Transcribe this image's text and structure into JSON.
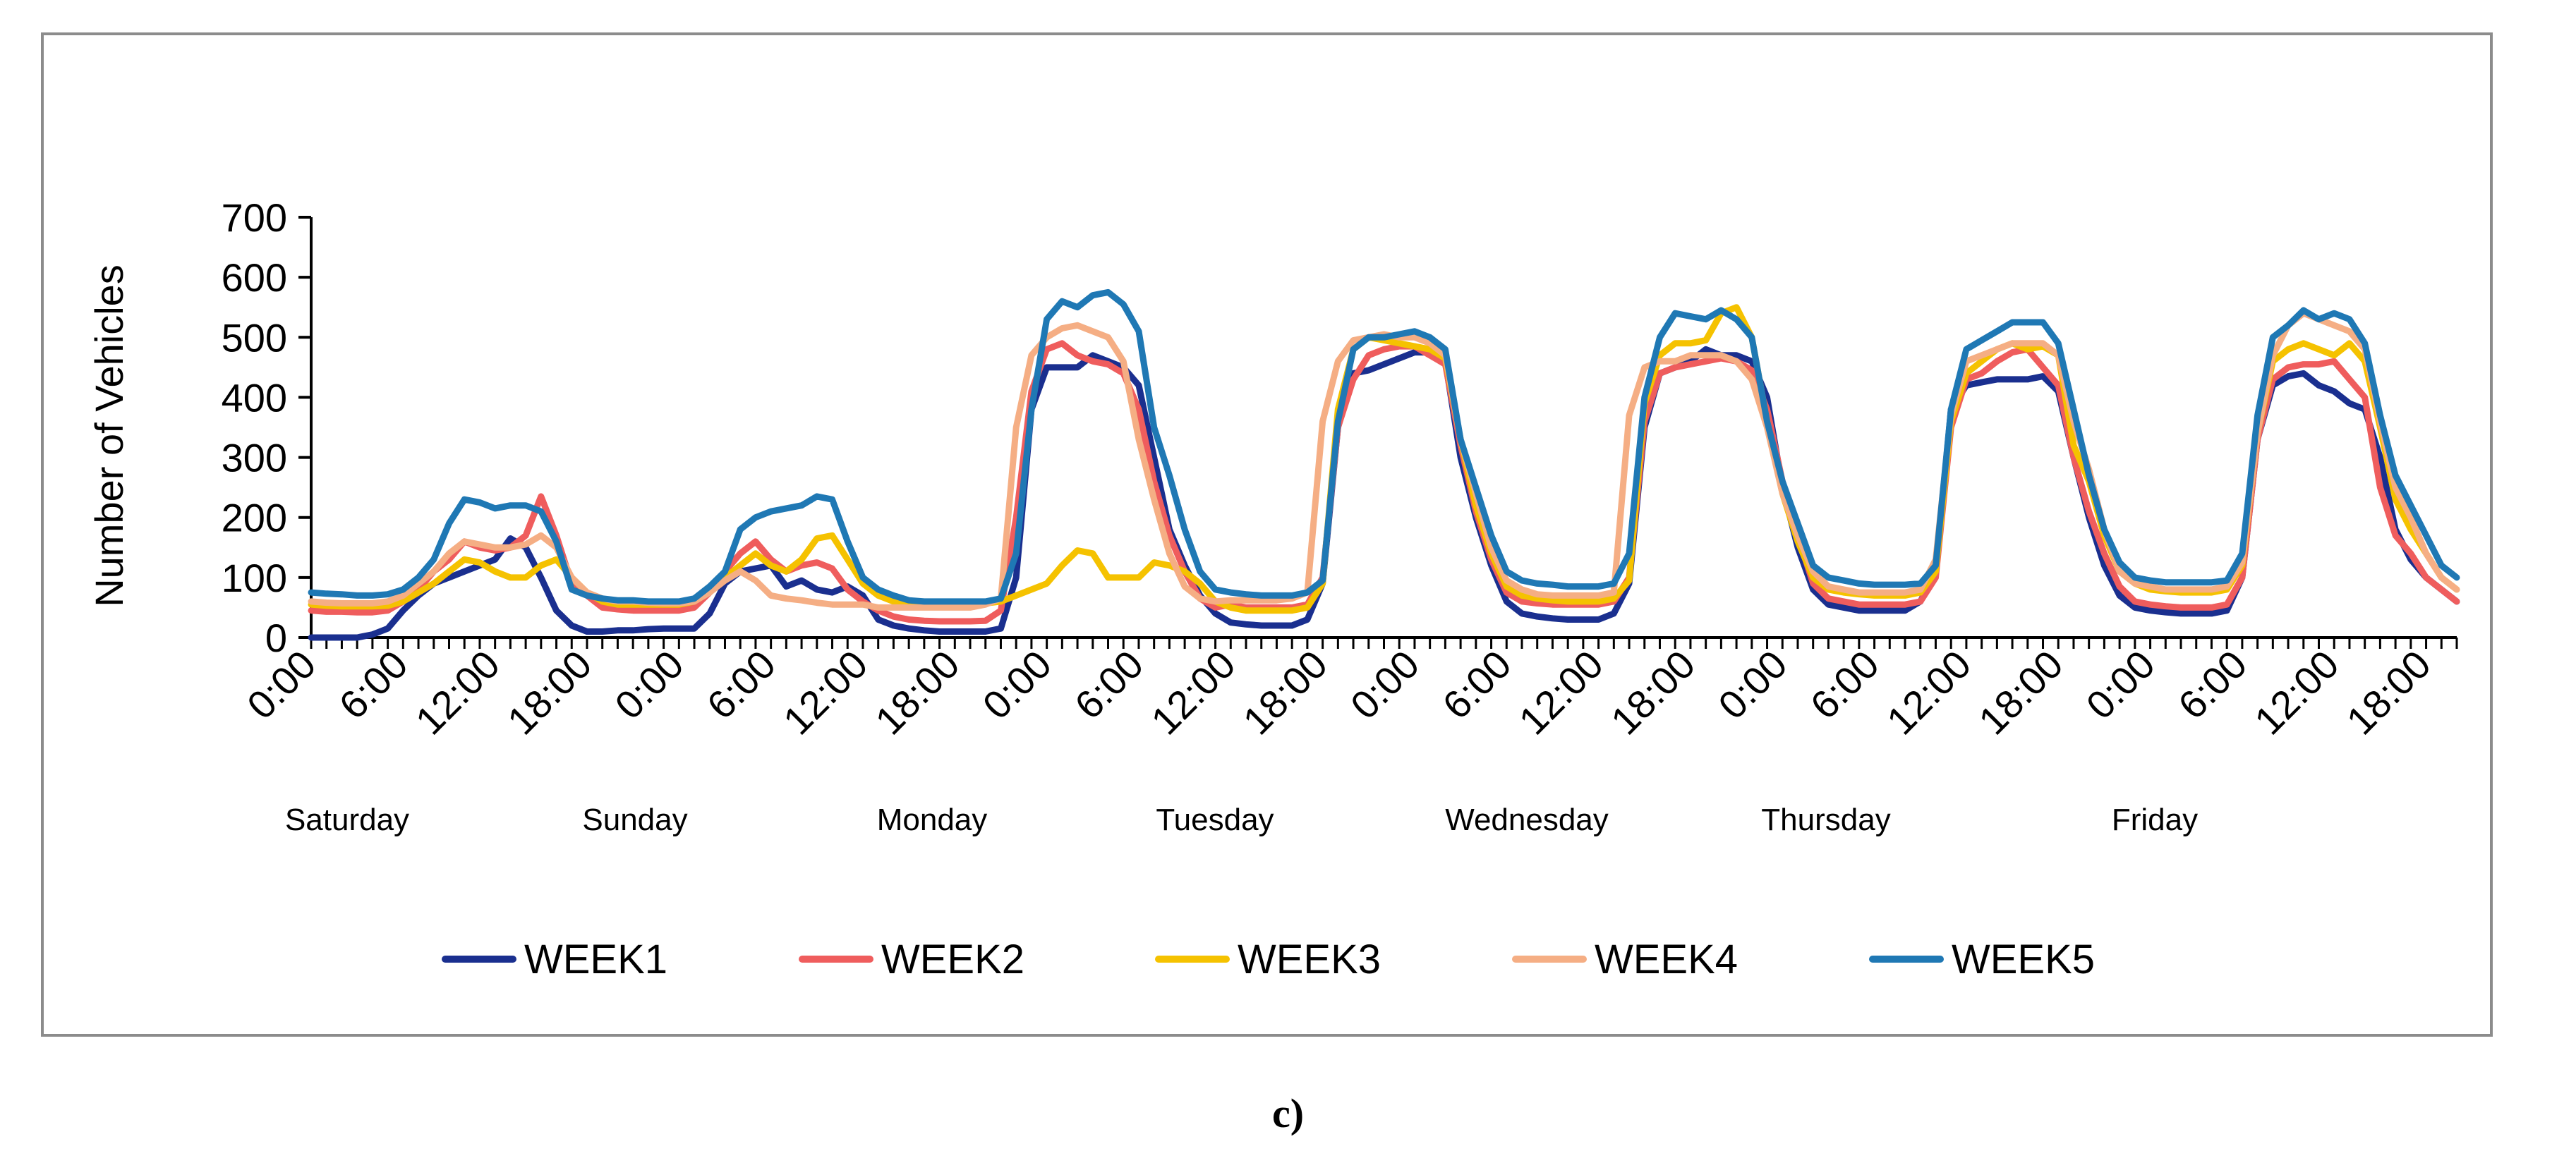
{
  "caption": "c)",
  "colors": {
    "WEEK1": "#1a2f8f",
    "WEEK2": "#ef5d5d",
    "WEEK3": "#f5c200",
    "WEEK4": "#f5ae84",
    "WEEK5": "#1f78b4"
  },
  "chart_data": {
    "type": "line",
    "title": "",
    "xlabel": "",
    "ylabel": "Number of Vehicles",
    "ylim": [
      0,
      700
    ],
    "yticks": [
      0,
      100,
      200,
      300,
      400,
      500,
      600,
      700
    ],
    "x_tick_labels": [
      "0:00",
      "6:00",
      "12:00",
      "18:00"
    ],
    "x_tick_step_hours": 6,
    "x_note_unused": "",
    "days": [
      "Saturday",
      "Sunday",
      "Monday",
      "Tuesday",
      "Wednesday",
      "Thursday",
      "Friday"
    ],
    "grid": false,
    "legend_position": "bottom",
    "series": [
      {
        "name": "WEEK1",
        "color": "#1a2f8f",
        "values": [
          0,
          0,
          0,
          0,
          5,
          15,
          45,
          70,
          90,
          100,
          110,
          120,
          130,
          165,
          150,
          100,
          45,
          20,
          10,
          10,
          12,
          12,
          14,
          15,
          15,
          15,
          40,
          90,
          110,
          115,
          120,
          85,
          95,
          80,
          75,
          85,
          70,
          30,
          20,
          15,
          12,
          10,
          10,
          10,
          10,
          15,
          100,
          380,
          450,
          450,
          450,
          470,
          460,
          450,
          420,
          300,
          180,
          120,
          70,
          40,
          25,
          22,
          20,
          20,
          20,
          30,
          90,
          350,
          440,
          445,
          455,
          465,
          475,
          475,
          460,
          300,
          200,
          120,
          60,
          40,
          35,
          32,
          30,
          30,
          30,
          40,
          90,
          350,
          440,
          450,
          460,
          480,
          470,
          470,
          460,
          400,
          250,
          150,
          80,
          55,
          50,
          45,
          45,
          45,
          45,
          60,
          110,
          380,
          420,
          425,
          430,
          430,
          430,
          435,
          410,
          300,
          200,
          120,
          70,
          50,
          45,
          42,
          40,
          40,
          40,
          45,
          100,
          330,
          420,
          435,
          440,
          420,
          410,
          390,
          380,
          300,
          180,
          130,
          100,
          80,
          60
        ]
      },
      {
        "name": "WEEK2",
        "color": "#ef5d5d",
        "values": [
          45,
          43,
          43,
          42,
          42,
          45,
          60,
          80,
          110,
          130,
          160,
          150,
          145,
          150,
          170,
          235,
          170,
          90,
          70,
          50,
          47,
          45,
          45,
          45,
          45,
          50,
          75,
          110,
          140,
          160,
          130,
          110,
          120,
          125,
          115,
          80,
          60,
          45,
          35,
          30,
          28,
          27,
          27,
          27,
          28,
          45,
          200,
          410,
          480,
          490,
          470,
          460,
          455,
          440,
          380,
          260,
          170,
          110,
          65,
          50,
          55,
          50,
          50,
          50,
          50,
          55,
          100,
          350,
          430,
          470,
          480,
          485,
          485,
          470,
          455,
          320,
          210,
          130,
          75,
          60,
          57,
          55,
          55,
          55,
          55,
          60,
          100,
          360,
          440,
          450,
          455,
          460,
          465,
          460,
          445,
          380,
          260,
          170,
          90,
          65,
          60,
          55,
          55,
          55,
          55,
          60,
          100,
          350,
          430,
          440,
          460,
          475,
          480,
          450,
          420,
          300,
          210,
          140,
          85,
          60,
          55,
          52,
          50,
          50,
          50,
          55,
          100,
          330,
          430,
          450,
          455,
          455,
          460,
          430,
          400,
          250,
          170,
          140,
          100,
          80,
          60
        ]
      },
      {
        "name": "WEEK3",
        "color": "#f5c200",
        "values": [
          55,
          53,
          52,
          52,
          52,
          53,
          60,
          75,
          90,
          110,
          130,
          125,
          110,
          100,
          100,
          120,
          130,
          100,
          75,
          60,
          55,
          55,
          55,
          55,
          55,
          60,
          80,
          100,
          120,
          140,
          120,
          110,
          130,
          165,
          170,
          130,
          90,
          70,
          60,
          57,
          57,
          58,
          58,
          57,
          57,
          60,
          70,
          80,
          90,
          120,
          145,
          140,
          100,
          100,
          100,
          125,
          120,
          110,
          90,
          60,
          50,
          45,
          45,
          45,
          45,
          50,
          90,
          380,
          480,
          500,
          495,
          490,
          485,
          480,
          465,
          330,
          220,
          140,
          85,
          70,
          65,
          62,
          60,
          60,
          60,
          65,
          95,
          390,
          470,
          490,
          490,
          495,
          540,
          550,
          500,
          360,
          240,
          160,
          100,
          80,
          75,
          72,
          70,
          70,
          70,
          75,
          110,
          360,
          440,
          460,
          480,
          490,
          480,
          485,
          470,
          320,
          260,
          170,
          110,
          90,
          80,
          77,
          75,
          75,
          75,
          80,
          120,
          340,
          460,
          480,
          490,
          480,
          470,
          490,
          460,
          350,
          230,
          180,
          140,
          100,
          80
        ]
      },
      {
        "name": "WEEK4",
        "color": "#f5ae84",
        "values": [
          60,
          58,
          57,
          57,
          57,
          60,
          70,
          90,
          110,
          140,
          160,
          155,
          150,
          150,
          155,
          170,
          150,
          100,
          75,
          65,
          60,
          60,
          58,
          57,
          57,
          60,
          75,
          95,
          110,
          95,
          70,
          65,
          62,
          58,
          55,
          55,
          55,
          50,
          50,
          50,
          50,
          50,
          50,
          50,
          55,
          65,
          350,
          470,
          500,
          515,
          520,
          510,
          500,
          460,
          330,
          230,
          140,
          85,
          65,
          60,
          62,
          62,
          62,
          62,
          65,
          75,
          360,
          460,
          495,
          500,
          505,
          500,
          500,
          490,
          470,
          330,
          240,
          150,
          95,
          80,
          72,
          70,
          70,
          70,
          70,
          75,
          370,
          450,
          460,
          460,
          470,
          470,
          470,
          460,
          430,
          350,
          240,
          170,
          110,
          85,
          80,
          75,
          75,
          75,
          75,
          80,
          130,
          370,
          460,
          470,
          480,
          490,
          490,
          490,
          470,
          360,
          280,
          180,
          110,
          90,
          85,
          80,
          80,
          80,
          80,
          85,
          125,
          340,
          470,
          520,
          540,
          530,
          520,
          510,
          480,
          360,
          250,
          200,
          140,
          100,
          80
        ]
      },
      {
        "name": "WEEK5",
        "color": "#1f78b4",
        "values": [
          75,
          73,
          72,
          70,
          70,
          72,
          80,
          100,
          130,
          190,
          230,
          225,
          215,
          220,
          220,
          210,
          160,
          80,
          70,
          65,
          62,
          62,
          60,
          60,
          60,
          65,
          85,
          110,
          180,
          200,
          210,
          215,
          220,
          235,
          230,
          160,
          100,
          80,
          70,
          62,
          60,
          60,
          60,
          60,
          60,
          65,
          140,
          380,
          530,
          560,
          550,
          570,
          575,
          555,
          510,
          350,
          270,
          180,
          110,
          80,
          75,
          72,
          70,
          70,
          70,
          75,
          95,
          360,
          480,
          500,
          500,
          505,
          510,
          500,
          480,
          330,
          250,
          170,
          110,
          95,
          90,
          88,
          85,
          85,
          85,
          90,
          140,
          400,
          500,
          540,
          535,
          530,
          545,
          530,
          500,
          360,
          260,
          190,
          120,
          100,
          95,
          90,
          88,
          88,
          88,
          90,
          120,
          380,
          480,
          495,
          510,
          525,
          525,
          525,
          490,
          380,
          270,
          180,
          125,
          100,
          95,
          92,
          92,
          92,
          92,
          95,
          140,
          370,
          500,
          520,
          545,
          530,
          540,
          530,
          490,
          370,
          270,
          220,
          170,
          120,
          100
        ]
      }
    ]
  }
}
